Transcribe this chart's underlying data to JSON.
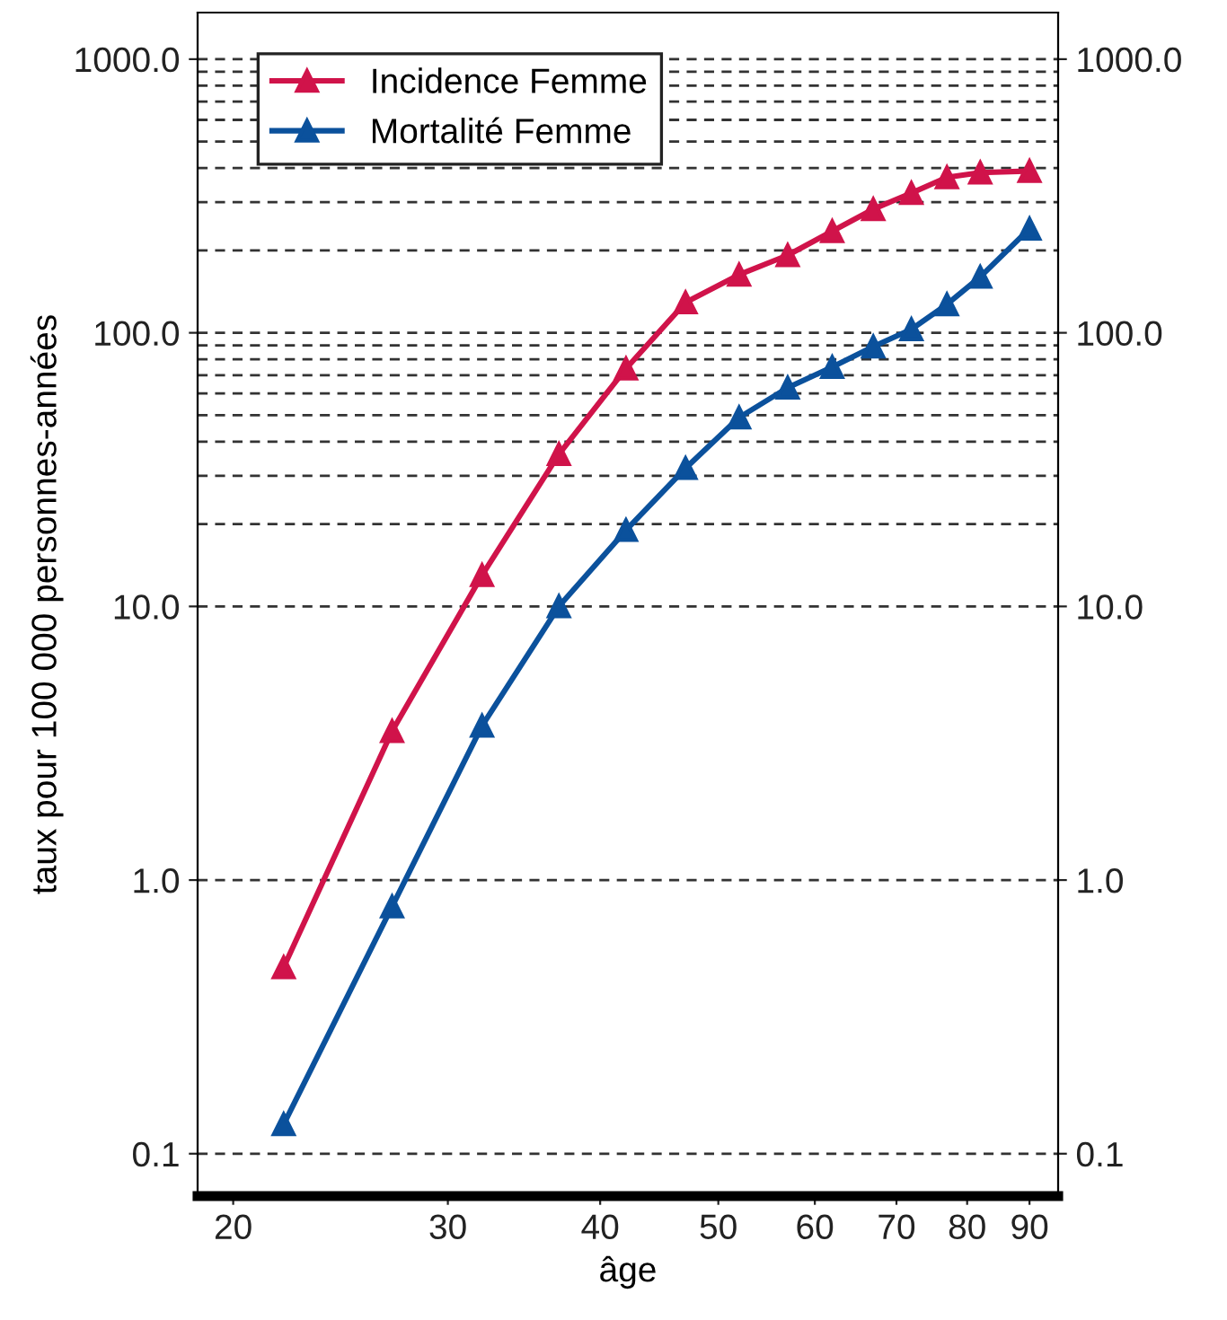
{
  "chart_data": {
    "type": "line",
    "xlabel": "âge",
    "ylabel": "taux pour 100 000 personnes-années",
    "log": "xy",
    "xlim": [
      18.7,
      95
    ],
    "xticks": [
      20,
      30,
      40,
      50,
      60,
      70,
      80,
      90
    ],
    "ylim": [
      0.07,
      1480
    ],
    "yticks": [
      {
        "value": 0.1,
        "label": "0.1"
      },
      {
        "value": 1,
        "label": "1.0"
      },
      {
        "value": 10,
        "label": "10.0"
      },
      {
        "value": 20,
        "label": null
      },
      {
        "value": 30,
        "label": null
      },
      {
        "value": 40,
        "label": null
      },
      {
        "value": 50,
        "label": null
      },
      {
        "value": 60,
        "label": null
      },
      {
        "value": 70,
        "label": null
      },
      {
        "value": 80,
        "label": null
      },
      {
        "value": 90,
        "label": null
      },
      {
        "value": 100,
        "label": "100.0"
      },
      {
        "value": 200,
        "label": null
      },
      {
        "value": 300,
        "label": null
      },
      {
        "value": 400,
        "label": null
      },
      {
        "value": 500,
        "label": null
      },
      {
        "value": 600,
        "label": null
      },
      {
        "value": 700,
        "label": null
      },
      {
        "value": 800,
        "label": null
      },
      {
        "value": 900,
        "label": null
      },
      {
        "value": 1000,
        "label": "1000.0"
      }
    ],
    "grid": "y",
    "legend": "top left",
    "marker": "triangle",
    "line_style": "solid",
    "series": [
      {
        "name": "Incidence Femme",
        "color": "#d0134a",
        "x": [
          22,
          27,
          32,
          37,
          42,
          47,
          52,
          57,
          62,
          67,
          72,
          77,
          82,
          90
        ],
        "values": [
          0.48,
          3.5,
          13,
          36,
          74,
          129,
          163,
          192,
          235,
          283,
          324,
          370,
          385,
          390
        ]
      },
      {
        "name": "Mortalité Femme",
        "color": "#0b519c",
        "x": [
          22,
          27,
          32,
          37,
          42,
          47,
          52,
          57,
          62,
          67,
          72,
          77,
          82,
          90
        ],
        "values": [
          0.128,
          0.8,
          3.66,
          10,
          19,
          32,
          49,
          63,
          75,
          89,
          103,
          127,
          160,
          240
        ]
      }
    ]
  }
}
